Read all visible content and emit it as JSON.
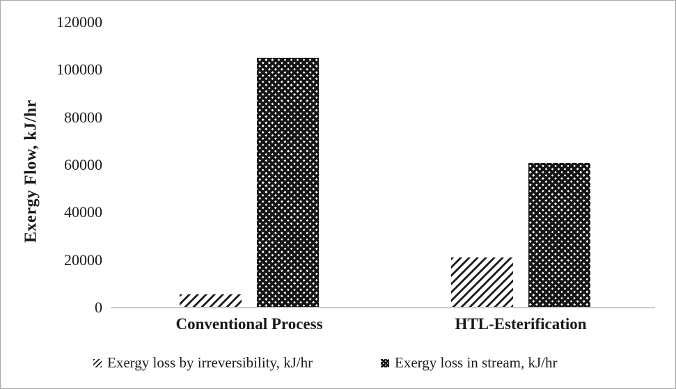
{
  "chart_data": {
    "type": "bar",
    "title": "",
    "xlabel": "",
    "ylabel": "Exergy Flow, kJ/hr",
    "categories": [
      "Conventional Process",
      "HTL-Esterification"
    ],
    "series": [
      {
        "name": "Exergy loss by irreversibility, kJ/hr",
        "pattern": "diagonal-hatch",
        "values": [
          5500,
          21000
        ]
      },
      {
        "name": "Exergy loss in stream, kJ/hr",
        "pattern": "cross-hatch",
        "values": [
          105000,
          61000
        ]
      }
    ],
    "ylim": [
      0,
      120000
    ],
    "ytick_interval": 20000,
    "yticks": [
      0,
      20000,
      40000,
      60000,
      80000,
      100000,
      120000
    ],
    "ytick_labels": [
      "0",
      "20000",
      "40000",
      "60000",
      "80000",
      "100000",
      "120000"
    ],
    "grid": false,
    "legend_position": "bottom"
  },
  "colors": {
    "bar_ink": "#1a1a1a",
    "axis_line": "#c9c9c9",
    "text": "#1a1a1a",
    "background": "#ffffff"
  }
}
